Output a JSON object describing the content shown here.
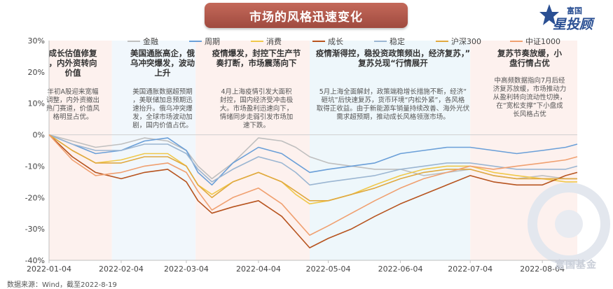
{
  "title": "市场的风格迅速变化",
  "logo": {
    "top": "富国",
    "main": "星投顾"
  },
  "watermark": "富国基金",
  "footer": "数据来源：Wind，截至2022-8-19",
  "annotations": [
    {
      "heading": "成长估值修复，内外资转向价值",
      "body": "年初A股迎来宽幅调整，内外资撤出热门赛道，价值风格明显占优。"
    },
    {
      "heading": "美国通胀高企，俄乌冲突爆发，波动上升",
      "body": "美国通胀数据超预期，美联储加息预期迅速抬升。俄乌冲突爆发，全球市场波动加剧，国内价值占优。"
    },
    {
      "heading": "疫情爆发，封控下生产节奏打断，市场震荡向下",
      "body": "4月上海疫情引发大面积封控，国内经济受冲击极大。市场盈利迅速向下，情绪同步走弱引发市场加速下跌。"
    },
    {
      "heading": "疫情渐得控，稳投资政策频出，经济复苏，”复苏兑现“行情展开",
      "body": "5月上海全面解封，政策端稳增长措施不断，经济“砸坑”后快速复苏，货币环境“内松外紧”，各风格取得正收益。由于新能源车销量持续改善、海外光伏需求超预期，推动成长风格领涨市场。"
    },
    {
      "heading": "复苏节奏放缓，小盘行情占优",
      "body": "中高频数据指向7月后经济复苏放缓，市场推动力从盈利转向流动性切换，在“宽松支撑”下小盘成长风格占优"
    }
  ],
  "chart_data": {
    "type": "line",
    "x": [
      "2022-01-04",
      "2022-01-14",
      "2022-01-24",
      "2022-02-04",
      "2022-02-14",
      "2022-02-24",
      "2022-03-04",
      "2022-03-09",
      "2022-03-15",
      "2022-03-24",
      "2022-04-04",
      "2022-04-14",
      "2022-04-20",
      "2022-04-26",
      "2022-05-04",
      "2022-05-14",
      "2022-05-24",
      "2022-06-04",
      "2022-06-14",
      "2022-06-24",
      "2022-07-04",
      "2022-07-14",
      "2022-07-24",
      "2022-08-04",
      "2022-08-14",
      "2022-08-19"
    ],
    "xticks": [
      "2022-01-04",
      "2022-02-04",
      "2022-03-04",
      "2022-04-04",
      "2022-05-04",
      "2022-06-04",
      "2022-07-04",
      "2022-08-04"
    ],
    "ylim": [
      -40,
      30
    ],
    "yticks": [
      -40,
      -30,
      -20,
      -10,
      0,
      10,
      20,
      30
    ],
    "ytick_labels": [
      "-40%",
      "-30%",
      "-20%",
      "-10%",
      "0%",
      "10%",
      "20%",
      "30%"
    ],
    "grid": false,
    "legend_position": "top",
    "series": [
      {
        "name": "金融",
        "color": "#bfbfbf",
        "values": [
          0,
          -2,
          -4,
          -3,
          -1,
          -2,
          -5,
          -10,
          -14,
          -9,
          -1,
          -2,
          -4,
          -7,
          -9,
          -10,
          -11,
          -11,
          -13,
          -12,
          -11,
          -13,
          -14,
          -13,
          -14,
          -14
        ]
      },
      {
        "name": "周期",
        "color": "#6a9fd8",
        "values": [
          0,
          -3,
          -6,
          -5,
          -2,
          -1,
          -5,
          -12,
          -16,
          -9,
          -4,
          -6,
          -9,
          -12,
          -11,
          -10,
          -9,
          -6,
          -5,
          -4,
          -4,
          -5,
          -6,
          -5,
          -4,
          -3
        ]
      },
      {
        "name": "消费",
        "color": "#f0c84a",
        "values": [
          0,
          -5,
          -9,
          -8,
          -6,
          -6,
          -10,
          -16,
          -19,
          -15,
          -12,
          -15,
          -19,
          -22,
          -21,
          -19,
          -16,
          -13,
          -11,
          -10,
          -10,
          -12,
          -13,
          -14,
          -15,
          -15
        ]
      },
      {
        "name": "成长",
        "color": "#b7541f",
        "values": [
          0,
          -7,
          -12,
          -14,
          -12,
          -11,
          -15,
          -21,
          -25,
          -23,
          -21,
          -26,
          -31,
          -36,
          -33,
          -30,
          -26,
          -22,
          -19,
          -16,
          -13,
          -15,
          -16,
          -16,
          -13,
          -12
        ]
      },
      {
        "name": "稳定",
        "color": "#9bb6d2",
        "values": [
          0,
          -3,
          -5,
          -5,
          -3,
          -3,
          -6,
          -11,
          -15,
          -11,
          -7,
          -9,
          -12,
          -16,
          -15,
          -14,
          -13,
          -11,
          -10,
          -9,
          -9,
          -10,
          -11,
          -11,
          -11,
          -10
        ]
      },
      {
        "name": "沪深300",
        "color": "#e0a940",
        "values": [
          0,
          -5,
          -9,
          -9,
          -7,
          -7,
          -10,
          -16,
          -20,
          -15,
          -12,
          -15,
          -18,
          -21,
          -21,
          -19,
          -17,
          -14,
          -12,
          -11,
          -11,
          -13,
          -14,
          -14,
          -14,
          -14
        ]
      },
      {
        "name": "中证1000",
        "color": "#f0a070",
        "values": [
          0,
          -8,
          -13,
          -12,
          -10,
          -9,
          -12,
          -18,
          -24,
          -20,
          -17,
          -22,
          -27,
          -32,
          -29,
          -25,
          -21,
          -17,
          -14,
          -12,
          -10,
          -11,
          -10,
          -9,
          -8,
          -7
        ]
      }
    ]
  }
}
